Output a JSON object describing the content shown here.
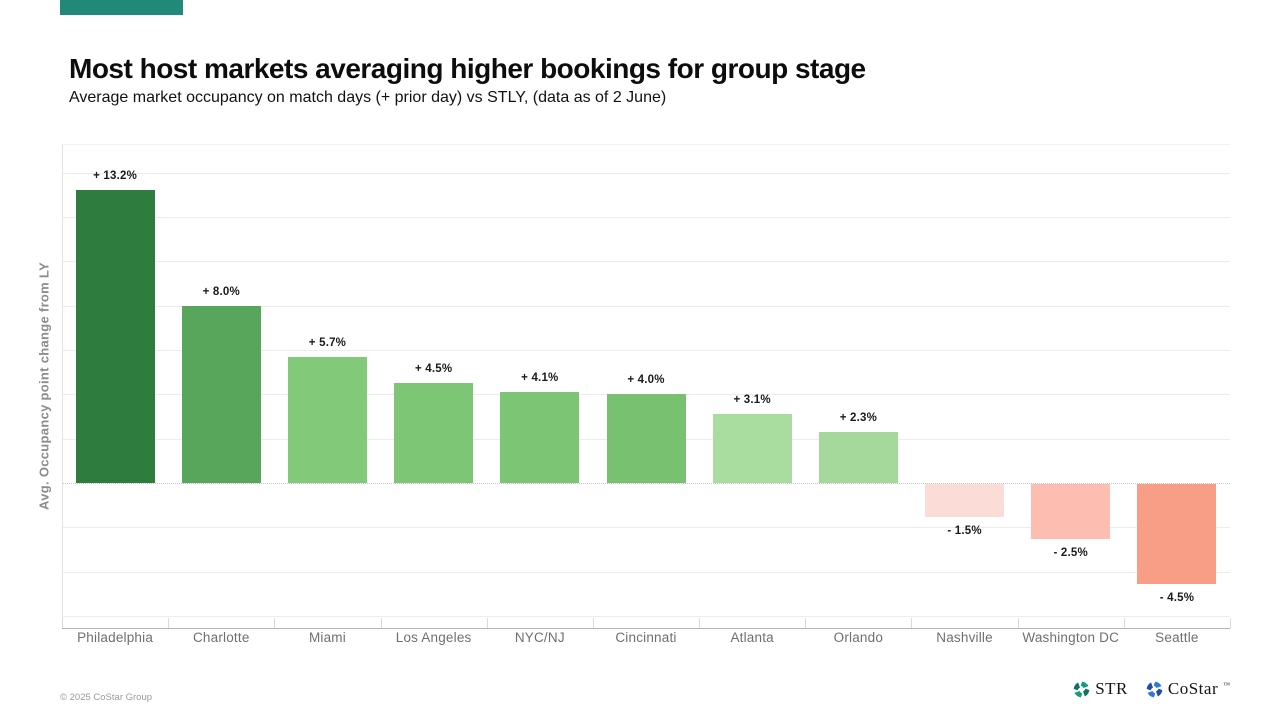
{
  "header": {
    "title": "Most host markets averaging higher bookings for group stage",
    "subtitle": "Average market occupancy on match days (+ prior day) vs STLY, (data as of 2 June)"
  },
  "chart_data": {
    "type": "bar",
    "title": "Most host markets averaging higher bookings for group stage",
    "subtitle": "Average market occupancy on match days (+ prior day) vs STLY, (data as of 2 June)",
    "xlabel": "",
    "ylabel": "Avg. Occupancy point change from LY",
    "categories": [
      "Philadelphia",
      "Charlotte",
      "Miami",
      "Los Angeles",
      "NYC/NJ",
      "Cincinnati",
      "Atlanta",
      "Orlando",
      "Nashville",
      "Washington DC",
      "Seattle"
    ],
    "values": [
      13.2,
      8.0,
      5.7,
      4.5,
      4.1,
      4.0,
      3.1,
      2.3,
      -1.5,
      -2.5,
      -4.5
    ],
    "data_labels": [
      "+ 13.2%",
      "+ 8.0%",
      "+ 5.7%",
      "+ 4.5%",
      "+ 4.1%",
      "+ 4.0%",
      "+ 3.1%",
      "+ 2.3%",
      "- 1.5%",
      "- 2.5%",
      "- 4.5%"
    ],
    "bar_colors": [
      "#2e7d3f",
      "#57a65b",
      "#82c97a",
      "#7dc676",
      "#7cc575",
      "#78c170",
      "#a9dc9f",
      "#a5d99c",
      "#fbdcd6",
      "#fdbdb0",
      "#f99e86"
    ],
    "ylim": [
      -6.5,
      15.3
    ],
    "grid": true,
    "gridline_values": [
      14,
      12,
      10,
      8,
      6,
      4,
      2,
      0,
      -2,
      -4,
      -6
    ],
    "zero_line_style": "dotted",
    "legend_position": "none"
  },
  "colors": {
    "accent_teal": "#21897a",
    "grid_line": "#ececec",
    "axis_line": "#b3b3b3",
    "value_label": "#1a1a1a",
    "category_label": "#6f6f6f",
    "ylabel_gray": "#8c8c8c"
  },
  "footer": {
    "copyright": "© 2025 CoStar Group",
    "str_label": "STR",
    "costar_label": "CoStar",
    "costar_tm": "™",
    "str_icon_colors": [
      "#169a80",
      "#0d7263"
    ],
    "costar_icon_colors": [
      "#2e77df",
      "#1c4fa1"
    ]
  }
}
